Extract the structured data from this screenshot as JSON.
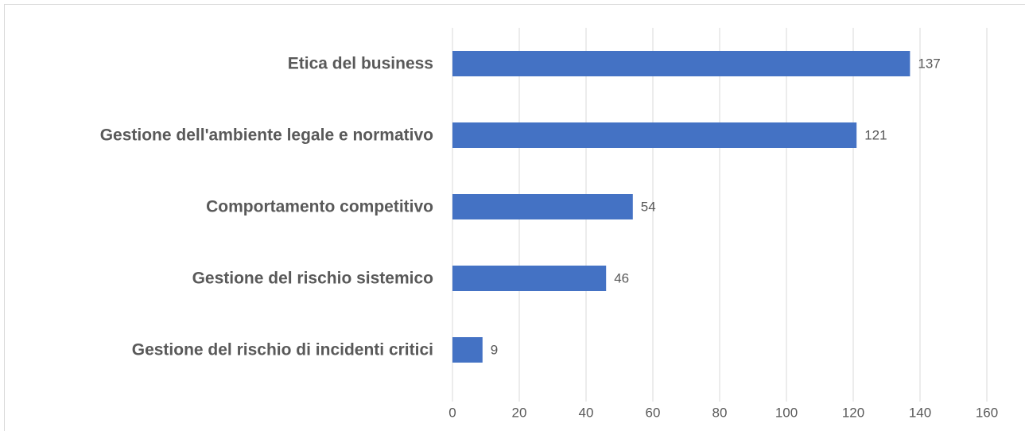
{
  "chart_data": {
    "type": "bar",
    "orientation": "horizontal",
    "categories": [
      "Etica del business",
      "Gestione dell'ambiente legale e normativo",
      "Comportamento competitivo",
      "Gestione del rischio sistemico",
      "Gestione del rischio di incidenti critici"
    ],
    "values": [
      137,
      121,
      54,
      46,
      9
    ],
    "color": "#4472c4",
    "xlim": [
      0,
      160
    ],
    "xticks": [
      0,
      20,
      40,
      60,
      80,
      100,
      120,
      140,
      160
    ],
    "grid": true
  }
}
